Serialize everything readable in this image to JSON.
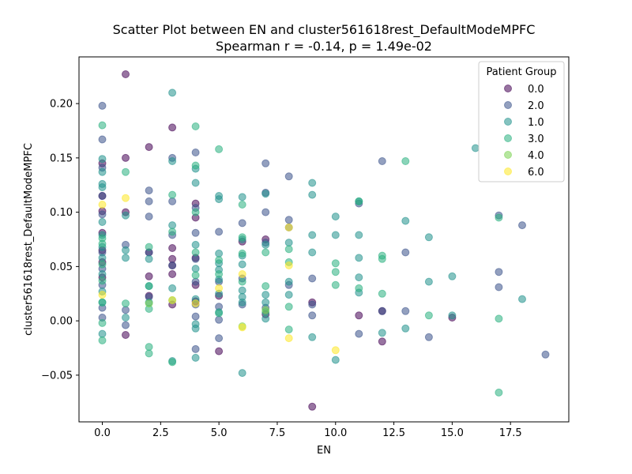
{
  "chart_data": {
    "type": "scatter",
    "title": "Scatter Plot between EN and cluster561618rest_DefaultModeMPFC",
    "subtitle": "Spearman r = -0.14, p = 1.49e-02",
    "xlabel": "EN",
    "ylabel": "cluster561618rest_DefaultModeMPFC",
    "xlim": [
      -1.0,
      20.0
    ],
    "ylim": [
      -0.093,
      0.243
    ],
    "xticks": [
      0.0,
      2.5,
      5.0,
      7.5,
      10.0,
      12.5,
      15.0,
      17.5
    ],
    "xtick_labels": [
      "0.0",
      "2.5",
      "5.0",
      "7.5",
      "10.0",
      "12.5",
      "15.0",
      "17.5"
    ],
    "yticks": [
      -0.05,
      0.0,
      0.05,
      0.1,
      0.15,
      0.2
    ],
    "ytick_labels": [
      "−0.05",
      "0.00",
      "0.05",
      "0.10",
      "0.15",
      "0.20"
    ],
    "grid": false,
    "legend": {
      "title": "Patient Group",
      "placement": "top-right",
      "entries": [
        {
          "label": "0.0",
          "color": "#440154"
        },
        {
          "label": "2.0",
          "color": "#3b528b"
        },
        {
          "label": "1.0",
          "color": "#21918c"
        },
        {
          "label": "3.0",
          "color": "#2ab07f"
        },
        {
          "label": "4.0",
          "color": "#7ad151"
        },
        {
          "label": "6.0",
          "color": "#fde725"
        }
      ]
    },
    "series": [
      {
        "name": "0.0",
        "color": "#440154",
        "points": [
          [
            0,
            0.115
          ],
          [
            0,
            0.101
          ],
          [
            0,
            0.081
          ],
          [
            0,
            0.065
          ],
          [
            0,
            0.054
          ],
          [
            0,
            0.04
          ],
          [
            0,
            0.145
          ],
          [
            1,
            0.227
          ],
          [
            1,
            0.15
          ],
          [
            1,
            0.1
          ],
          [
            1,
            -0.013
          ],
          [
            2,
            0.16
          ],
          [
            2,
            0.063
          ],
          [
            2,
            0.041
          ],
          [
            2,
            0.023
          ],
          [
            3,
            0.178
          ],
          [
            3,
            0.067
          ],
          [
            3,
            0.057
          ],
          [
            3,
            0.043
          ],
          [
            3,
            0.015
          ],
          [
            3,
            0.051
          ],
          [
            4,
            0.108
          ],
          [
            4,
            0.095
          ],
          [
            4,
            0.058
          ],
          [
            4,
            0.033
          ],
          [
            4,
            0.018
          ],
          [
            5,
            0.023
          ],
          [
            5,
            -0.028
          ],
          [
            6,
            0.073
          ],
          [
            7,
            0.075
          ],
          [
            7,
            0.006
          ],
          [
            9,
            0.017
          ],
          [
            9,
            -0.079
          ],
          [
            11,
            0.005
          ],
          [
            12,
            0.009
          ],
          [
            12,
            -0.019
          ],
          [
            15,
            0.003
          ]
        ]
      },
      {
        "name": "2.0",
        "color": "#3b528b",
        "points": [
          [
            0,
            0.198
          ],
          [
            0,
            0.167
          ],
          [
            0,
            0.141
          ],
          [
            0,
            0.115
          ],
          [
            0,
            0.098
          ],
          [
            0,
            0.063
          ],
          [
            0,
            0.048
          ],
          [
            0,
            0.033
          ],
          [
            0,
            0.012
          ],
          [
            0,
            0.003
          ],
          [
            1,
            0.07
          ],
          [
            1,
            0.01
          ],
          [
            1,
            -0.004
          ],
          [
            2,
            0.12
          ],
          [
            2,
            0.11
          ],
          [
            2,
            0.096
          ],
          [
            2,
            0.063
          ],
          [
            2,
            0.022
          ],
          [
            3,
            0.15
          ],
          [
            3,
            0.11
          ],
          [
            3,
            0.079
          ],
          [
            3,
            0.051
          ],
          [
            4,
            0.155
          ],
          [
            4,
            0.104
          ],
          [
            4,
            0.081
          ],
          [
            4,
            0.057
          ],
          [
            4,
            0.036
          ],
          [
            4,
            0.015
          ],
          [
            4,
            0.004
          ],
          [
            4,
            -0.026
          ],
          [
            5,
            0.082
          ],
          [
            5,
            0.036
          ],
          [
            5,
            0.013
          ],
          [
            5,
            0.001
          ],
          [
            5,
            -0.016
          ],
          [
            6,
            0.09
          ],
          [
            6,
            0.039
          ],
          [
            6,
            0.015
          ],
          [
            7,
            0.145
          ],
          [
            7,
            0.118
          ],
          [
            7,
            0.1
          ],
          [
            7,
            0.072
          ],
          [
            7,
            0.012
          ],
          [
            8,
            0.133
          ],
          [
            8,
            0.093
          ],
          [
            8,
            0.086
          ],
          [
            8,
            0.033
          ],
          [
            9,
            0.039
          ],
          [
            9,
            0.015
          ],
          [
            9,
            0.005
          ],
          [
            11,
            0.108
          ],
          [
            11,
            -0.012
          ],
          [
            12,
            0.147
          ],
          [
            12,
            0.009
          ],
          [
            13,
            0.063
          ],
          [
            13,
            0.009
          ],
          [
            14,
            -0.015
          ],
          [
            17,
            0.097
          ],
          [
            17,
            0.045
          ],
          [
            17,
            0.031
          ],
          [
            18,
            0.088
          ],
          [
            19,
            -0.031
          ]
        ]
      },
      {
        "name": "1.0",
        "color": "#21918c",
        "points": [
          [
            0,
            0.149
          ],
          [
            0,
            0.137
          ],
          [
            0,
            0.126
          ],
          [
            0,
            0.123
          ],
          [
            0,
            0.091
          ],
          [
            0,
            0.079
          ],
          [
            0,
            0.068
          ],
          [
            0,
            0.058
          ],
          [
            0,
            0.043
          ],
          [
            0,
            0.027
          ],
          [
            0,
            0.017
          ],
          [
            0,
            -0.012
          ],
          [
            1,
            0.097
          ],
          [
            1,
            0.065
          ],
          [
            1,
            0.058
          ],
          [
            1,
            0.003
          ],
          [
            2,
            0.057
          ],
          [
            2,
            0.032
          ],
          [
            2,
            0.017
          ],
          [
            3,
            0.21
          ],
          [
            3,
            0.147
          ],
          [
            3,
            0.088
          ],
          [
            3,
            0.03
          ],
          [
            3,
            -0.037
          ],
          [
            4,
            0.14
          ],
          [
            4,
            0.127
          ],
          [
            4,
            0.07
          ],
          [
            4,
            0.048
          ],
          [
            4,
            0.02
          ],
          [
            4,
            -0.003
          ],
          [
            4,
            -0.007
          ],
          [
            4,
            -0.034
          ],
          [
            5,
            0.115
          ],
          [
            5,
            0.112
          ],
          [
            5,
            0.062
          ],
          [
            5,
            0.053
          ],
          [
            5,
            0.047
          ],
          [
            5,
            0.038
          ],
          [
            5,
            0.025
          ],
          [
            5,
            0.008
          ],
          [
            6,
            0.114
          ],
          [
            6,
            0.075
          ],
          [
            6,
            0.06
          ],
          [
            6,
            0.052
          ],
          [
            6,
            0.028
          ],
          [
            6,
            0.022
          ],
          [
            6,
            0.017
          ],
          [
            6,
            -0.048
          ],
          [
            7,
            0.117
          ],
          [
            7,
            0.07
          ],
          [
            7,
            0.024
          ],
          [
            7,
            0.017
          ],
          [
            7,
            0.002
          ],
          [
            8,
            0.072
          ],
          [
            8,
            0.036
          ],
          [
            8,
            0.024
          ],
          [
            9,
            0.127
          ],
          [
            9,
            0.116
          ],
          [
            9,
            0.079
          ],
          [
            9,
            0.063
          ],
          [
            9,
            -0.015
          ],
          [
            10,
            0.096
          ],
          [
            10,
            0.079
          ],
          [
            10,
            -0.036
          ],
          [
            11,
            0.11
          ],
          [
            11,
            0.079
          ],
          [
            11,
            0.058
          ],
          [
            11,
            0.04
          ],
          [
            11,
            0.026
          ],
          [
            12,
            -0.011
          ],
          [
            13,
            0.092
          ],
          [
            13,
            -0.007
          ],
          [
            14,
            0.077
          ],
          [
            14,
            0.036
          ],
          [
            15,
            0.041
          ],
          [
            15,
            0.005
          ],
          [
            16,
            0.159
          ],
          [
            18,
            0.02
          ]
        ]
      },
      {
        "name": "3.0",
        "color": "#2ab07f",
        "points": [
          [
            0,
            0.18
          ],
          [
            0,
            0.076
          ],
          [
            0,
            0.071
          ],
          [
            0,
            0.052
          ],
          [
            0,
            0.037
          ],
          [
            0,
            0.017
          ],
          [
            0,
            -0.002
          ],
          [
            0,
            -0.018
          ],
          [
            1,
            0.137
          ],
          [
            1,
            0.016
          ],
          [
            2,
            0.068
          ],
          [
            2,
            0.032
          ],
          [
            2,
            0.011
          ],
          [
            2,
            -0.024
          ],
          [
            2,
            -0.03
          ],
          [
            3,
            0.116
          ],
          [
            3,
            0.082
          ],
          [
            3,
            0.019
          ],
          [
            3,
            -0.038
          ],
          [
            4,
            0.179
          ],
          [
            4,
            0.143
          ],
          [
            4,
            0.1
          ],
          [
            4,
            0.063
          ],
          [
            4,
            0.042
          ],
          [
            5,
            0.158
          ],
          [
            5,
            0.056
          ],
          [
            5,
            0.043
          ],
          [
            5,
            0.007
          ],
          [
            6,
            0.107
          ],
          [
            6,
            0.077
          ],
          [
            6,
            0.062
          ],
          [
            6,
            0.036
          ],
          [
            7,
            0.063
          ],
          [
            7,
            0.032
          ],
          [
            7,
            0.008
          ],
          [
            8,
            0.066
          ],
          [
            8,
            0.054
          ],
          [
            8,
            0.013
          ],
          [
            8,
            -0.008
          ],
          [
            10,
            0.053
          ],
          [
            10,
            0.045
          ],
          [
            10,
            0.033
          ],
          [
            11,
            0.11
          ],
          [
            11,
            0.03
          ],
          [
            12,
            0.06
          ],
          [
            12,
            0.057
          ],
          [
            12,
            0.025
          ],
          [
            13,
            0.147
          ],
          [
            14,
            0.005
          ],
          [
            17,
            0.095
          ],
          [
            17,
            0.002
          ],
          [
            17,
            -0.066
          ]
        ]
      },
      {
        "name": "4.0",
        "color": "#7ad151",
        "points": [
          [
            2,
            0.016
          ],
          [
            6,
            -0.005
          ],
          [
            7,
            0.01
          ]
        ]
      },
      {
        "name": "6.0",
        "color": "#fde725",
        "points": [
          [
            0,
            0.107
          ],
          [
            0,
            0.024
          ],
          [
            1,
            0.113
          ],
          [
            3,
            0.019
          ],
          [
            4,
            0.016
          ],
          [
            5,
            0.03
          ],
          [
            6,
            0.043
          ],
          [
            6,
            -0.006
          ],
          [
            8,
            0.086
          ],
          [
            8,
            0.051
          ],
          [
            8,
            -0.016
          ],
          [
            10,
            -0.027
          ]
        ]
      }
    ]
  }
}
